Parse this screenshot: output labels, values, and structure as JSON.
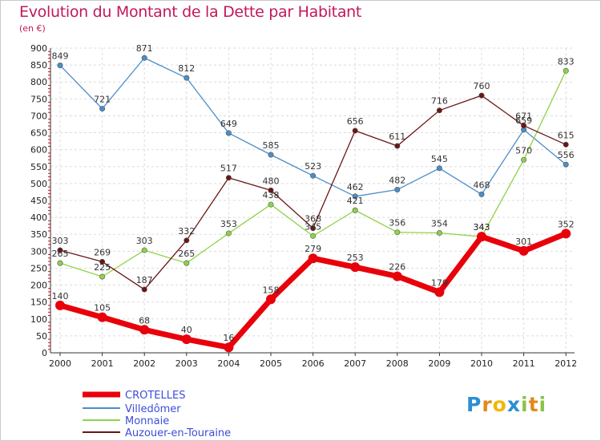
{
  "header": {
    "title": "Evolution du Montant de la Dette par Habitant",
    "subtitle": "(en €)"
  },
  "logo": {
    "text": "Proxiti",
    "letters": [
      {
        "char": "P",
        "color": "#2a8fd0"
      },
      {
        "char": "r",
        "color": "#e08a1e"
      },
      {
        "char": "o",
        "color": "#f2b705"
      },
      {
        "char": "x",
        "color": "#2a8fd0"
      },
      {
        "char": "i",
        "color": "#8bc34a"
      },
      {
        "char": "t",
        "color": "#e08a1e"
      },
      {
        "char": "i",
        "color": "#8bc34a"
      }
    ]
  },
  "chart_data": {
    "type": "line",
    "title": "Evolution du Montant de la Dette par Habitant",
    "subtitle": "(en €)",
    "xlabel": "",
    "ylabel": "",
    "categories": [
      "2000",
      "2001",
      "2002",
      "2003",
      "2004",
      "2005",
      "2006",
      "2007",
      "2008",
      "2009",
      "2010",
      "2011",
      "2012"
    ],
    "ylim": [
      0,
      900
    ],
    "yticks": [
      0,
      50,
      100,
      150,
      200,
      250,
      300,
      350,
      400,
      450,
      500,
      550,
      600,
      650,
      700,
      750,
      800,
      850,
      900
    ],
    "grid": true,
    "legend_placement": "bottom-left",
    "series": [
      {
        "name": "CROTELLES",
        "color": "#e8000b",
        "values": [
          140,
          105,
          68,
          40,
          16,
          158,
          279,
          253,
          226,
          179,
          343,
          301,
          352
        ]
      },
      {
        "name": "Villedômer",
        "color": "#4a8ec9",
        "values": [
          849,
          721,
          871,
          812,
          649,
          585,
          523,
          462,
          482,
          545,
          468,
          659,
          556
        ]
      },
      {
        "name": "Monnaie",
        "color": "#8fd24a",
        "values": [
          265,
          225,
          303,
          265,
          353,
          438,
          345,
          421,
          356,
          354,
          343,
          570,
          833
        ]
      },
      {
        "name": "Auzouer-en-Touraine",
        "color": "#6b1515",
        "values": [
          303,
          269,
          187,
          332,
          517,
          480,
          368,
          656,
          611,
          716,
          760,
          671,
          615
        ]
      }
    ]
  }
}
